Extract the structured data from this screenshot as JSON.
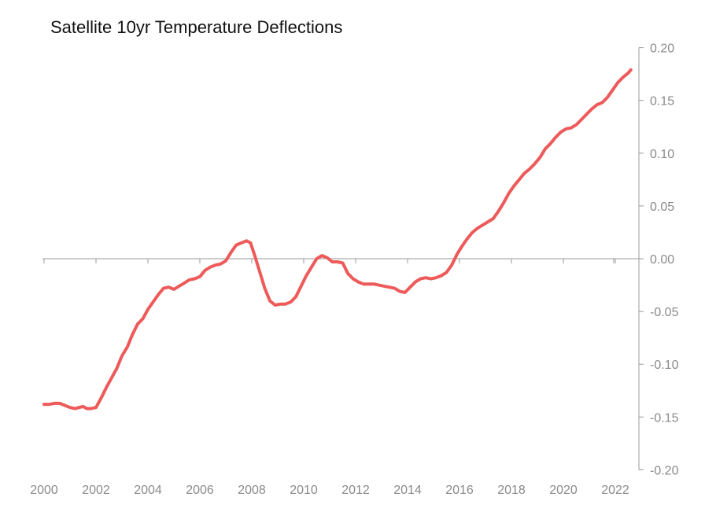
{
  "chart_data": {
    "type": "line",
    "title": "Satellite 10yr Temperature Deflections",
    "xlabel": "",
    "ylabel": "",
    "xlim": [
      2000,
      2022.6
    ],
    "ylim": [
      -0.2,
      0.2
    ],
    "x_ticks": [
      "2000",
      "2002",
      "2004",
      "2006",
      "2008",
      "2010",
      "2012",
      "2014",
      "2016",
      "2018",
      "2020",
      "2022"
    ],
    "y_ticks": [
      "0.20",
      "0.15",
      "0.10",
      "0.05",
      "0.00",
      "-0.05",
      "-0.10",
      "-0.15",
      "-0.20"
    ],
    "grid": false,
    "legend": "none",
    "series": [
      {
        "color": "#ee5a5a",
        "x": [
          2000.0,
          2000.2,
          2000.4,
          2000.6,
          2000.8,
          2001.0,
          2001.2,
          2001.35,
          2001.5,
          2001.65,
          2001.8,
          2002.0,
          2002.2,
          2002.4,
          2002.6,
          2002.8,
          2003.0,
          2003.2,
          2003.4,
          2003.6,
          2003.8,
          2004.0,
          2004.2,
          2004.4,
          2004.6,
          2004.8,
          2005.0,
          2005.2,
          2005.4,
          2005.6,
          2005.8,
          2006.0,
          2006.2,
          2006.4,
          2006.6,
          2006.8,
          2007.0,
          2007.2,
          2007.4,
          2007.6,
          2007.8,
          2007.95,
          2008.1,
          2008.3,
          2008.5,
          2008.7,
          2008.9,
          2009.1,
          2009.3,
          2009.5,
          2009.7,
          2009.9,
          2010.1,
          2010.3,
          2010.5,
          2010.7,
          2010.9,
          2011.1,
          2011.3,
          2011.5,
          2011.7,
          2011.9,
          2012.1,
          2012.3,
          2012.5,
          2012.7,
          2012.9,
          2013.1,
          2013.3,
          2013.5,
          2013.7,
          2013.9,
          2014.1,
          2014.3,
          2014.5,
          2014.7,
          2014.9,
          2015.1,
          2015.3,
          2015.5,
          2015.7,
          2015.9,
          2016.1,
          2016.3,
          2016.5,
          2016.7,
          2016.9,
          2017.1,
          2017.3,
          2017.5,
          2017.7,
          2017.9,
          2018.1,
          2018.3,
          2018.5,
          2018.7,
          2018.9,
          2019.1,
          2019.3,
          2019.5,
          2019.7,
          2019.9,
          2020.1,
          2020.3,
          2020.5,
          2020.7,
          2020.9,
          2021.1,
          2021.3,
          2021.5,
          2021.7,
          2021.9,
          2022.1,
          2022.3,
          2022.5,
          2022.6
        ],
        "y": [
          -0.138,
          -0.138,
          -0.137,
          -0.137,
          -0.139,
          -0.141,
          -0.142,
          -0.141,
          -0.14,
          -0.142,
          -0.142,
          -0.141,
          -0.132,
          -0.122,
          -0.113,
          -0.104,
          -0.092,
          -0.084,
          -0.072,
          -0.062,
          -0.057,
          -0.048,
          -0.041,
          -0.034,
          -0.028,
          -0.027,
          -0.029,
          -0.026,
          -0.023,
          -0.02,
          -0.019,
          -0.017,
          -0.011,
          -0.008,
          -0.006,
          -0.005,
          -0.002,
          0.006,
          0.013,
          0.015,
          0.017,
          0.015,
          0.004,
          -0.012,
          -0.028,
          -0.04,
          -0.044,
          -0.043,
          -0.043,
          -0.041,
          -0.036,
          -0.026,
          -0.016,
          -0.008,
          0.0,
          0.003,
          0.001,
          -0.003,
          -0.003,
          -0.004,
          -0.014,
          -0.019,
          -0.022,
          -0.024,
          -0.024,
          -0.024,
          -0.025,
          -0.026,
          -0.027,
          -0.028,
          -0.031,
          -0.032,
          -0.027,
          -0.022,
          -0.019,
          -0.018,
          -0.019,
          -0.018,
          -0.016,
          -0.013,
          -0.006,
          0.004,
          0.012,
          0.019,
          0.025,
          0.029,
          0.032,
          0.035,
          0.038,
          0.045,
          0.053,
          0.062,
          0.069,
          0.075,
          0.081,
          0.085,
          0.09,
          0.096,
          0.104,
          0.109,
          0.115,
          0.12,
          0.123,
          0.124,
          0.127,
          0.132,
          0.137,
          0.142,
          0.146,
          0.148,
          0.153,
          0.16,
          0.167,
          0.172,
          0.176,
          0.179
        ]
      }
    ]
  }
}
